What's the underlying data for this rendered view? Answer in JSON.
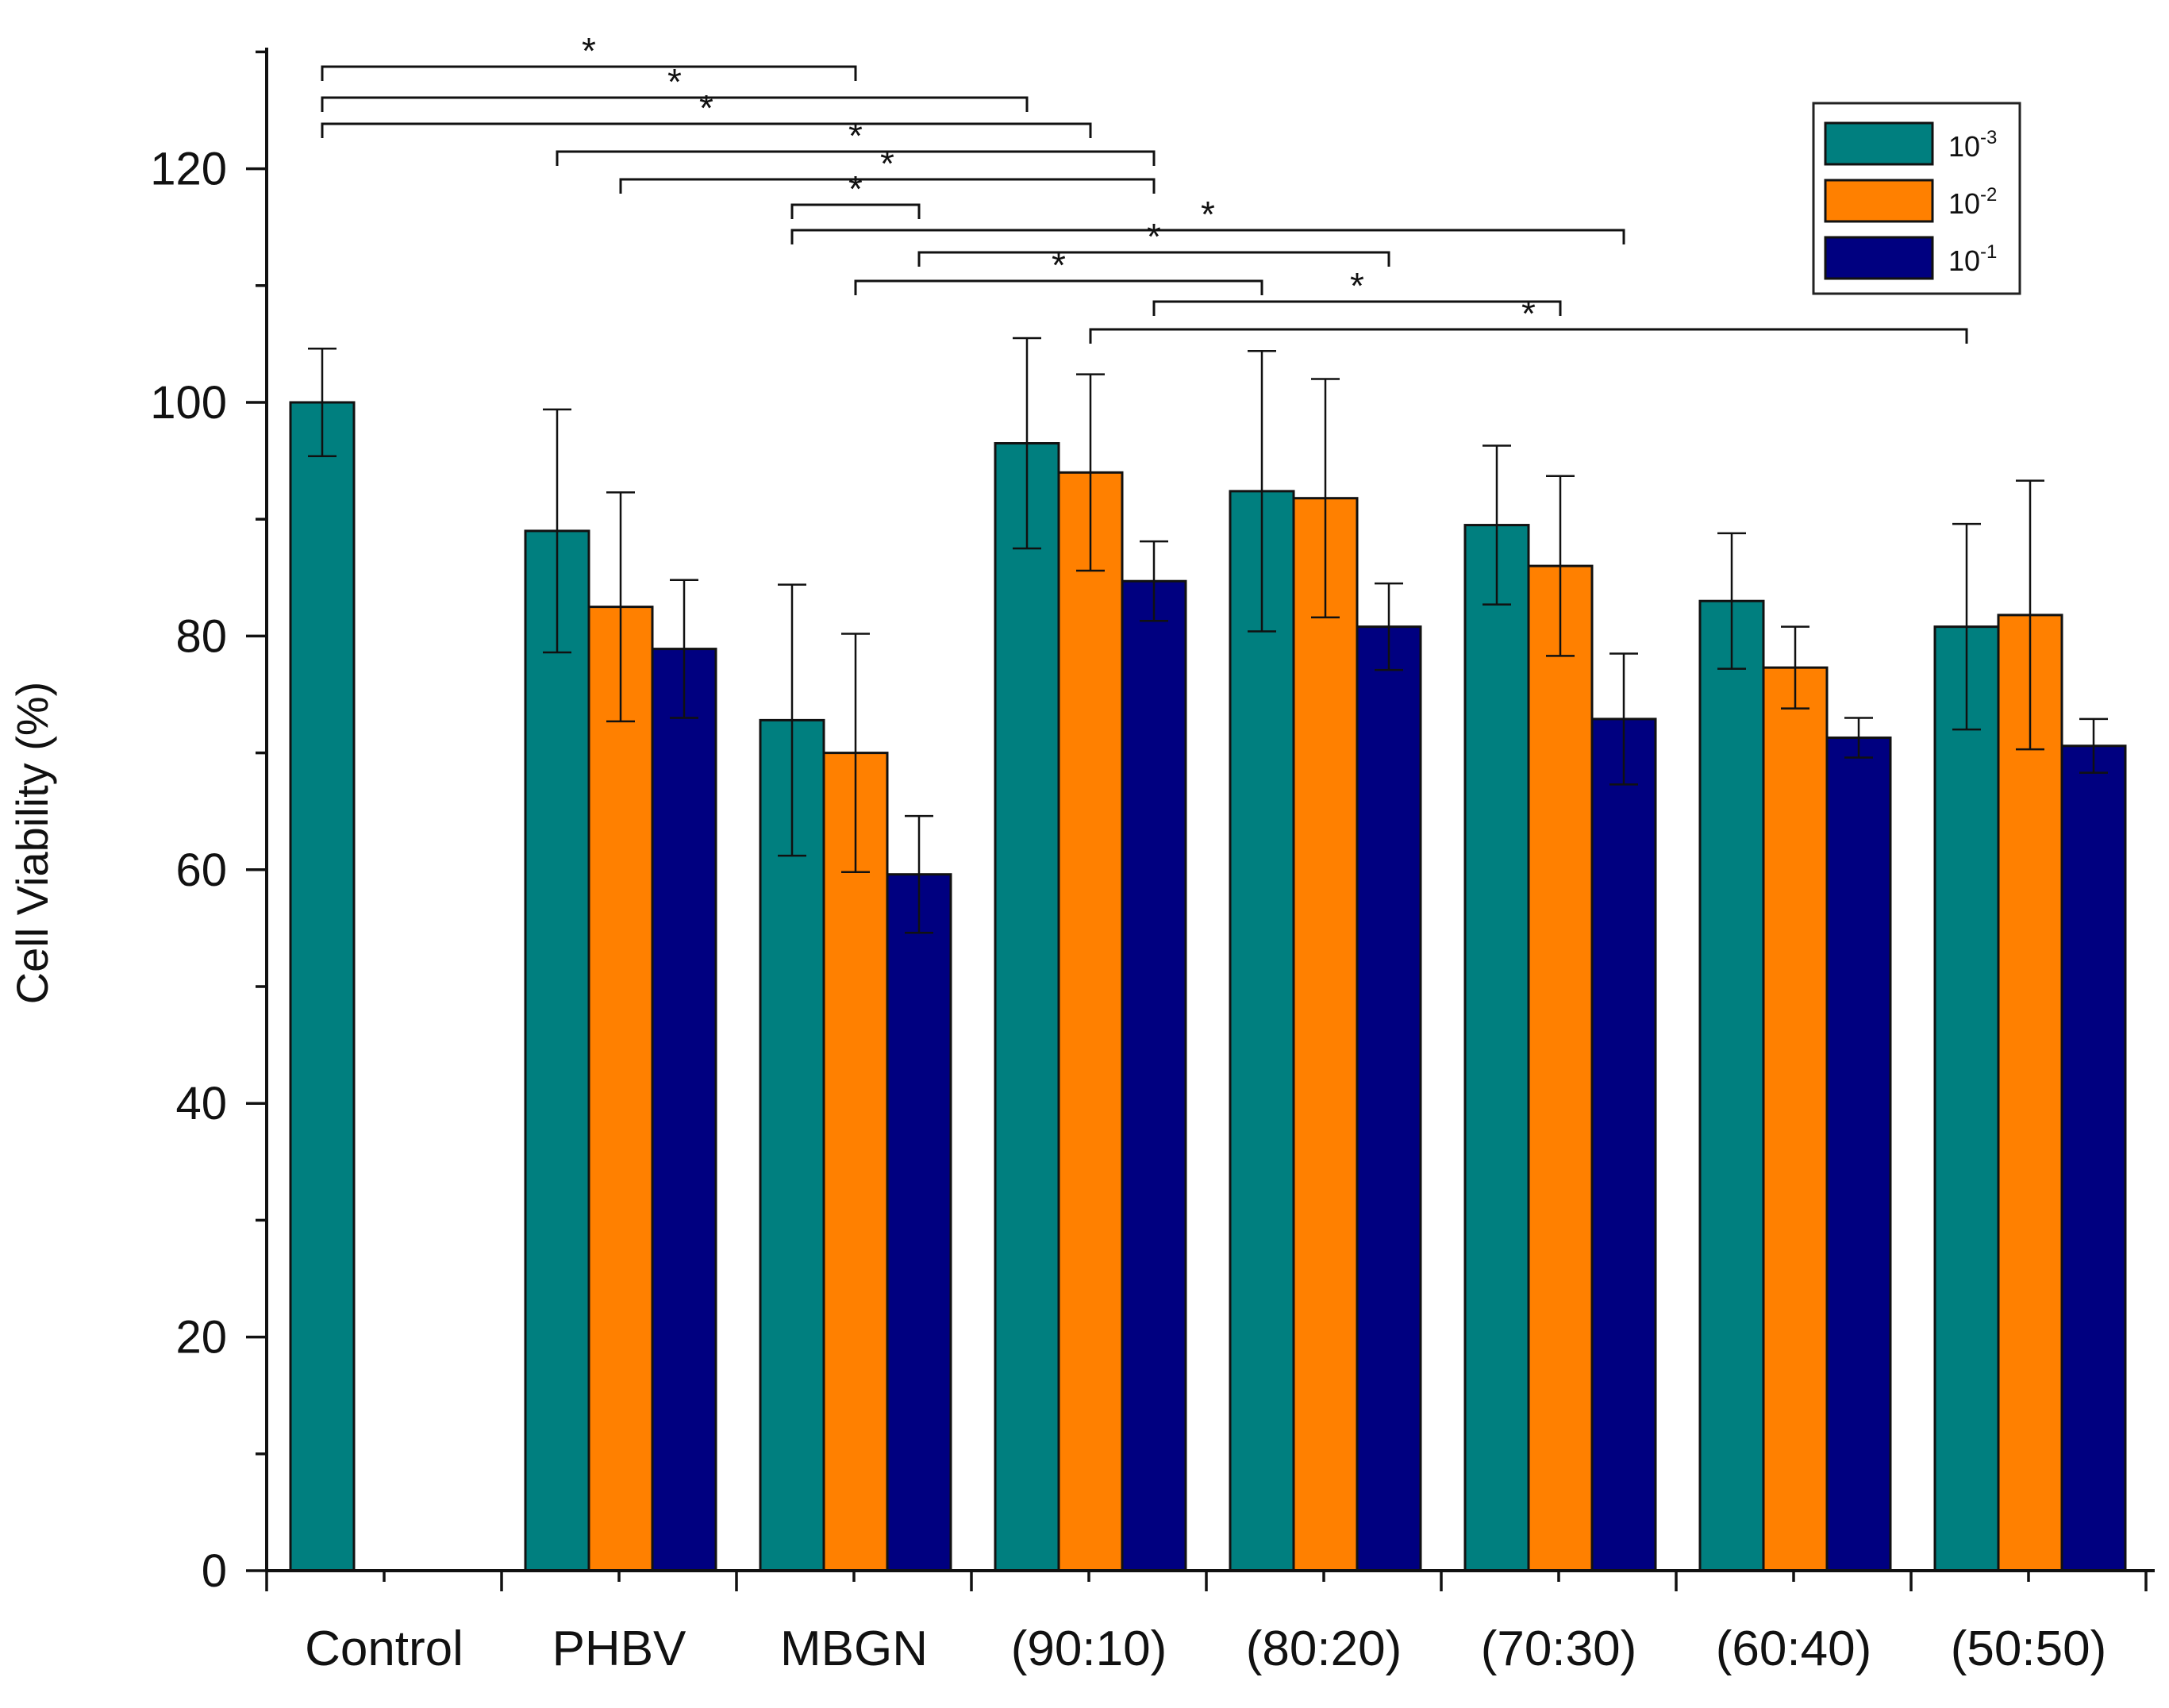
{
  "chart_data": {
    "type": "bar",
    "title": "",
    "xlabel": "",
    "ylabel": "Cell Viability (%)",
    "ylim": [
      0,
      130
    ],
    "yticks": [
      0,
      20,
      40,
      60,
      80,
      100,
      120
    ],
    "grid": false,
    "legend_position": "top-right",
    "categories": [
      "Control",
      "PHBV",
      "MBGN",
      "(90:10)",
      "(80:20)",
      "(70:30)",
      "(60:40)",
      "(50:50)"
    ],
    "series": [
      {
        "name": "10^-3",
        "name_base": "10",
        "name_exp": "-3",
        "color": "#007F7F",
        "values": [
          100,
          89,
          72.8,
          96.5,
          92.4,
          89.5,
          83.0,
          80.8
        ],
        "errors": [
          4.6,
          10.4,
          11.6,
          9.0,
          12.0,
          6.8,
          5.8,
          8.8
        ]
      },
      {
        "name": "10^-2",
        "name_base": "10",
        "name_exp": "-2",
        "color": "#FF8000",
        "values": [
          null,
          82.5,
          70.0,
          94.0,
          91.8,
          86.0,
          77.3,
          81.8
        ],
        "errors": [
          null,
          9.8,
          10.2,
          8.4,
          10.2,
          7.7,
          3.5,
          11.5
        ]
      },
      {
        "name": "10^-1",
        "name_base": "10",
        "name_exp": "-1",
        "color": "#000080",
        "values": [
          null,
          78.9,
          59.6,
          84.7,
          80.8,
          72.9,
          71.3,
          70.6
        ],
        "errors": [
          null,
          5.9,
          5.0,
          3.4,
          3.7,
          5.6,
          1.7,
          2.3
        ]
      }
    ],
    "significance": [
      {
        "from": "Control-10^-3",
        "to": "MBGN-10^-2",
        "label": "*"
      },
      {
        "from": "Control-10^-3",
        "to": "(90:10)-10^-3",
        "label": "*"
      },
      {
        "from": "Control-10^-3",
        "to": "(90:10)-10^-2",
        "label": "*"
      },
      {
        "from": "PHBV-10^-3",
        "to": "(90:10)-10^-1",
        "label": "*"
      },
      {
        "from": "PHBV-10^-2",
        "to": "(90:10)-10^-1",
        "label": "*"
      },
      {
        "from": "MBGN-10^-3",
        "to": "MBGN-10^-1",
        "label": "*"
      },
      {
        "from": "MBGN-10^-1",
        "to": "(80:20)-10^-1",
        "label": "*"
      },
      {
        "from": "MBGN-10^-3",
        "to": "(70:30)-10^-1",
        "label": "*"
      },
      {
        "from": "MBGN-10^-2",
        "to": "(80:20)-10^-3",
        "label": "*"
      },
      {
        "from": "(90:10)-10^-1",
        "to": "(70:30)-10^-2",
        "label": "*"
      },
      {
        "from": "(90:10)-10^-2",
        "to": "(50:50)-10^-3",
        "label": "*"
      }
    ]
  }
}
